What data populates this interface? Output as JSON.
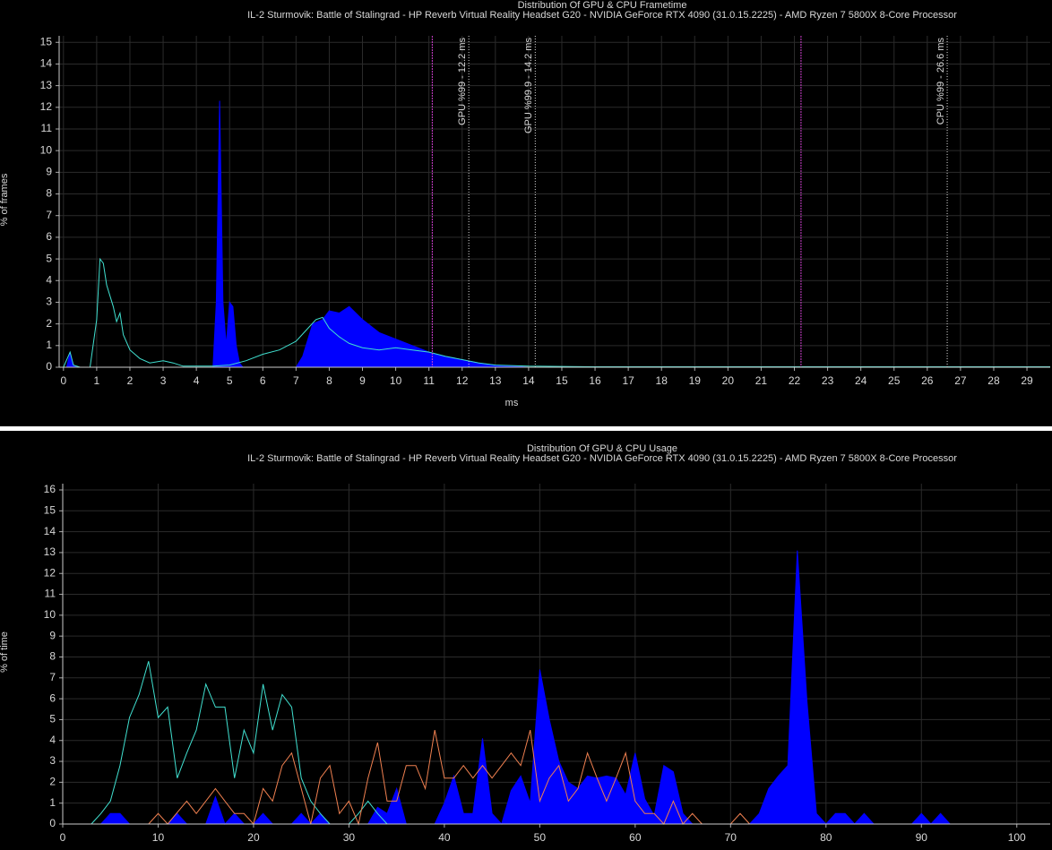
{
  "chart_data": [
    {
      "type": "area-line",
      "title": "Distribution Of GPU & CPU Frametime",
      "subtitle": "IL-2 Sturmovik: Battle of Stalingrad - HP Reverb Virtual Reality Headset G20 - NVIDIA GeForce RTX 4090 (31.0.15.2225) - AMD Ryzen 7 5800X 8-Core Processor",
      "x_label": "ms",
      "y_label": "% of frames",
      "xlim": [
        -0.13,
        29.7
      ],
      "ylim": [
        0,
        15.3
      ],
      "xticks": [
        0,
        1,
        2,
        3,
        4,
        5,
        6,
        7,
        8,
        9,
        10,
        11,
        12,
        13,
        14,
        15,
        16,
        17,
        18,
        19,
        20,
        21,
        22,
        23,
        24,
        25,
        26,
        27,
        28,
        29
      ],
      "yticks": [
        0,
        1,
        2,
        3,
        4,
        5,
        6,
        7,
        8,
        9,
        10,
        11,
        12,
        13,
        14,
        15
      ],
      "grid": true,
      "series": [
        {
          "style": "area",
          "color": "#0000ff",
          "x": [
            0,
            0.1,
            0.2,
            0.3,
            0.4,
            4.5,
            4.6,
            4.7,
            4.8,
            4.9,
            5.0,
            5.1,
            5.2,
            5.3,
            5.4,
            7.0,
            7.2,
            7.5,
            7.8,
            8.0,
            8.3,
            8.6,
            9.0,
            9.5,
            10.0,
            10.5,
            11.0,
            11.5,
            12.0,
            12.5,
            13.0,
            13.5,
            14.0
          ],
          "values": [
            0,
            0,
            0.7,
            0.1,
            0,
            0,
            3.0,
            12.3,
            3.0,
            1.0,
            3.0,
            2.8,
            1.0,
            0.2,
            0,
            0,
            0.5,
            2.0,
            2.2,
            2.6,
            2.5,
            2.8,
            2.2,
            1.6,
            1.3,
            1.0,
            0.7,
            0.5,
            0.35,
            0.2,
            0.1,
            0.05,
            0
          ]
        },
        {
          "style": "line",
          "color": "#40e0d0",
          "x": [
            0,
            0.2,
            0.3,
            0.5,
            0.8,
            0.9,
            1.0,
            1.1,
            1.2,
            1.3,
            1.5,
            1.6,
            1.7,
            1.8,
            2.0,
            2.3,
            2.6,
            3.0,
            3.3,
            3.6,
            4.0,
            4.5,
            5.0,
            5.5,
            6.0,
            6.5,
            7.0,
            7.3,
            7.6,
            7.8,
            8.0,
            8.3,
            8.6,
            9.0,
            9.5,
            10.0,
            10.5,
            11.0,
            11.5,
            12.0,
            12.5,
            13.0,
            14.0,
            16.0,
            20.0,
            29.7
          ],
          "values": [
            0,
            0.7,
            0.1,
            0,
            0,
            1.1,
            2.2,
            5.0,
            4.8,
            3.8,
            2.8,
            2.1,
            2.5,
            1.5,
            0.8,
            0.4,
            0.2,
            0.3,
            0.2,
            0.05,
            0.05,
            0.05,
            0.1,
            0.3,
            0.6,
            0.8,
            1.2,
            1.7,
            2.2,
            2.3,
            1.8,
            1.4,
            1.1,
            0.9,
            0.8,
            0.9,
            0.8,
            0.7,
            0.5,
            0.35,
            0.2,
            0.1,
            0.05,
            0.02,
            0.02,
            0.02
          ]
        }
      ],
      "reference_lines": [
        {
          "x": 11.1,
          "color": "#d040d0"
        },
        {
          "x": 22.2,
          "color": "#d040d0"
        }
      ],
      "annotations": [
        {
          "x": 12.2,
          "label": "GPU %99 - 12.2 ms"
        },
        {
          "x": 14.2,
          "label": "GPU %99.9 - 14.2 ms"
        },
        {
          "x": 26.6,
          "label": "CPU %99 - 26.6 ms"
        }
      ]
    },
    {
      "type": "area-line",
      "title": "Distribution Of GPU & CPU Usage",
      "subtitle": "IL-2 Sturmovik: Battle of Stalingrad - HP Reverb Virtual Reality Headset G20 - NVIDIA GeForce RTX 4090 (31.0.15.2225) - AMD Ryzen 7 5800X 8-Core Processor",
      "y_label": "% of time",
      "xlim": [
        0,
        103.5
      ],
      "ylim": [
        0,
        16.3
      ],
      "xticks": [
        0,
        10,
        20,
        30,
        40,
        50,
        60,
        70,
        80,
        90,
        100
      ],
      "yticks": [
        0,
        1,
        2,
        3,
        4,
        5,
        6,
        7,
        8,
        9,
        10,
        11,
        12,
        13,
        14,
        15,
        16
      ],
      "grid": true,
      "series": [
        {
          "style": "area",
          "color": "#0000ff",
          "x": [
            4,
            5,
            6,
            7,
            11,
            12,
            13,
            15,
            16,
            17,
            18,
            19,
            20,
            21,
            22,
            24,
            25,
            26,
            27,
            28,
            32,
            33,
            34,
            35,
            36,
            39,
            40,
            41,
            42,
            43,
            44,
            45,
            46,
            47,
            48,
            49,
            50,
            51,
            52,
            53,
            54,
            55,
            56,
            57,
            58,
            59,
            60,
            61,
            62,
            63,
            64,
            65,
            66,
            72,
            73,
            74,
            75,
            76,
            77,
            78,
            79,
            80,
            81,
            82,
            83,
            84,
            85,
            89,
            90,
            91,
            92,
            93
          ],
          "values": [
            0,
            0.5,
            0.5,
            0,
            0,
            0.5,
            0,
            0,
            1.3,
            0,
            0.5,
            0,
            0,
            0.5,
            0,
            0,
            0.5,
            0,
            0.5,
            0,
            0,
            0.8,
            0.5,
            1.7,
            0,
            0,
            1.0,
            2.3,
            0.5,
            0.5,
            4.1,
            0.5,
            0,
            1.6,
            2.3,
            1.0,
            7.4,
            5.0,
            3.0,
            2.0,
            1.7,
            2.3,
            2.2,
            2.3,
            2.2,
            1.4,
            3.4,
            1.2,
            0.4,
            2.8,
            2.5,
            0.5,
            0,
            0,
            0.5,
            1.7,
            2.3,
            2.8,
            13.1,
            5.9,
            0.5,
            0,
            0.5,
            0.5,
            0,
            0.5,
            0,
            0,
            0.5,
            0,
            0.5,
            0
          ]
        },
        {
          "style": "line",
          "color": "#40e0d0",
          "x": [
            3,
            4,
            5,
            6,
            7,
            8,
            9,
            10,
            11,
            12,
            13,
            14,
            15,
            16,
            17,
            18,
            19,
            20,
            21,
            22,
            23,
            24,
            25,
            26,
            27,
            28,
            30,
            31,
            32,
            33,
            34,
            35
          ],
          "values": [
            0,
            0.5,
            1.1,
            2.8,
            5.1,
            6.2,
            7.8,
            5.1,
            5.6,
            2.2,
            3.4,
            4.5,
            6.7,
            5.6,
            5.6,
            2.2,
            4.5,
            3.4,
            6.7,
            4.5,
            6.2,
            5.6,
            2.2,
            1.1,
            0.5,
            0,
            0,
            0.5,
            1.1,
            0.5,
            0,
            0
          ]
        },
        {
          "style": "line",
          "color": "#f08050",
          "x": [
            9,
            10,
            11,
            13,
            14,
            16,
            17,
            18,
            19,
            20,
            21,
            22,
            23,
            24,
            25,
            26,
            27,
            28,
            29,
            30,
            31,
            32,
            33,
            34,
            35,
            36,
            37,
            38,
            39,
            40,
            41,
            42,
            43,
            44,
            45,
            46,
            47,
            48,
            49,
            50,
            51,
            52,
            53,
            54,
            55,
            56,
            57,
            58,
            59,
            60,
            61,
            62,
            63,
            64,
            65,
            66,
            67,
            70,
            71,
            72
          ],
          "values": [
            0,
            0.5,
            0,
            1.1,
            0.5,
            1.7,
            1.1,
            0.5,
            0.5,
            0,
            1.7,
            1.1,
            2.8,
            3.4,
            1.7,
            0,
            2.2,
            2.8,
            0.5,
            1.1,
            0,
            2.2,
            3.9,
            1.1,
            1.1,
            2.8,
            2.8,
            1.7,
            4.5,
            2.2,
            2.2,
            2.8,
            2.2,
            2.8,
            2.2,
            2.8,
            3.4,
            2.8,
            4.5,
            1.1,
            2.2,
            2.8,
            1.1,
            1.7,
            3.4,
            2.2,
            1.1,
            2.2,
            3.4,
            1.1,
            0.5,
            0.5,
            0,
            1.1,
            0,
            0.5,
            0,
            0,
            0.5,
            0
          ]
        }
      ]
    }
  ]
}
